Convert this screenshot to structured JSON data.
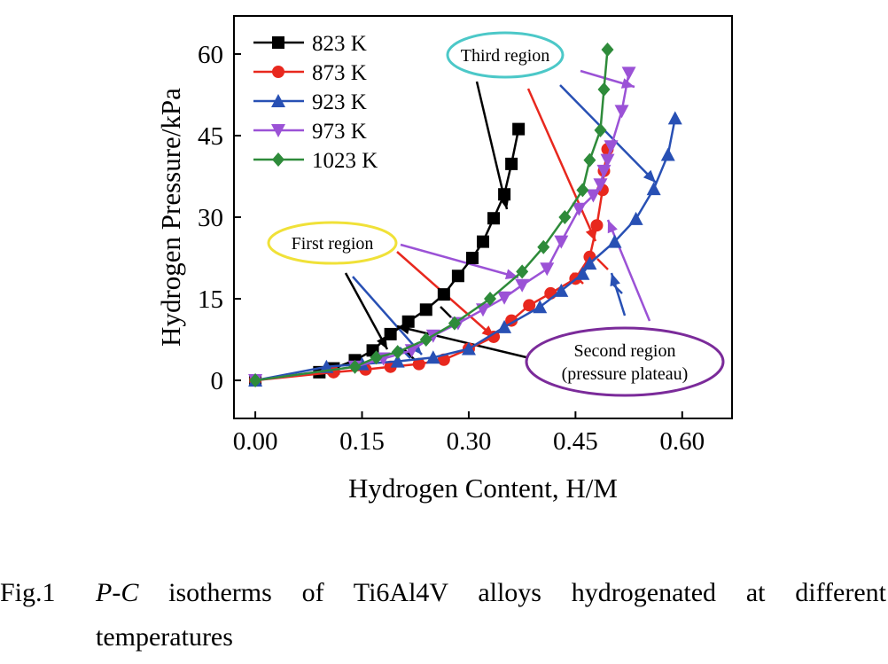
{
  "chart_data": {
    "type": "line",
    "xlabel": "Hydrogen Content, H/M",
    "ylabel": "Hydrogen Pressure/kPa",
    "xlim": [
      -0.03,
      0.67
    ],
    "ylim": [
      -7,
      67
    ],
    "xticks": [
      "0.00",
      "0.15",
      "0.30",
      "0.45",
      "0.60"
    ],
    "xtick_values": [
      0,
      0.15,
      0.3,
      0.45,
      0.6
    ],
    "yticks": [
      "0",
      "15",
      "30",
      "45",
      "60"
    ],
    "ytick_values": [
      0,
      15,
      30,
      45,
      60
    ],
    "legend_position": "top-left",
    "series": [
      {
        "name": "823 K",
        "color": "#000000",
        "marker": "square",
        "x": [
          0,
          0.09,
          0.11,
          0.14,
          0.165,
          0.19,
          0.215,
          0.24,
          0.265,
          0.285,
          0.305,
          0.32,
          0.335,
          0.35,
          0.36,
          0.37
        ],
        "y": [
          0,
          1.5,
          2.2,
          3.7,
          5.5,
          8.5,
          10.8,
          13,
          15.8,
          19.2,
          22.5,
          25.5,
          29.8,
          34.2,
          39.8,
          46.2
        ]
      },
      {
        "name": "873 K",
        "color": "#e8281e",
        "marker": "circle",
        "x": [
          0,
          0.11,
          0.155,
          0.19,
          0.23,
          0.265,
          0.3,
          0.335,
          0.36,
          0.385,
          0.415,
          0.45,
          0.47,
          0.48,
          0.488,
          0.49,
          0.495
        ],
        "y": [
          0,
          1.5,
          2.0,
          2.5,
          3.0,
          3.8,
          5.8,
          8.0,
          11.0,
          13.8,
          16.0,
          18.7,
          22.7,
          28.5,
          35.0,
          38.5,
          42.5
        ]
      },
      {
        "name": "923 K",
        "color": "#2850b4",
        "marker": "triangle-up",
        "x": [
          0,
          0.1,
          0.15,
          0.2,
          0.25,
          0.3,
          0.35,
          0.4,
          0.43,
          0.46,
          0.47,
          0.505,
          0.535,
          0.56,
          0.58,
          0.59
        ],
        "y": [
          0,
          2.5,
          3.0,
          3.5,
          4.2,
          5.8,
          9.8,
          13.5,
          16.5,
          19.6,
          21.5,
          25.5,
          29.7,
          35.2,
          41.5,
          48.2
        ]
      },
      {
        "name": "973 K",
        "color": "#9b52d6",
        "marker": "triangle-down",
        "x": [
          0,
          0.14,
          0.18,
          0.22,
          0.25,
          0.285,
          0.32,
          0.35,
          0.375,
          0.41,
          0.43,
          0.455,
          0.475,
          0.485,
          0.49,
          0.495,
          0.5,
          0.515,
          0.525
        ],
        "y": [
          0,
          2.5,
          4.0,
          5.5,
          8.2,
          10.5,
          13.0,
          15.2,
          17.5,
          20.5,
          25.5,
          31.5,
          34.0,
          36.0,
          38.5,
          40.5,
          43.0,
          49.5,
          56.5
        ]
      },
      {
        "name": "1023 K",
        "color": "#2e8b3a",
        "marker": "diamond",
        "x": [
          0,
          0.14,
          0.17,
          0.2,
          0.24,
          0.28,
          0.33,
          0.375,
          0.405,
          0.435,
          0.46,
          0.47,
          0.485,
          0.49,
          0.495
        ],
        "y": [
          0,
          2.5,
          4.2,
          5.2,
          7.5,
          10.5,
          15.0,
          20.0,
          24.5,
          30.0,
          35.0,
          40.5,
          46.0,
          53.5,
          60.8
        ]
      }
    ],
    "annotations": [
      {
        "label": "First region",
        "bubble_color": "#f0e138"
      },
      {
        "label": "Third region",
        "bubble_color": "#4cc8c8"
      },
      {
        "label_lines": [
          "Second region",
          "(pressure plateau)"
        ],
        "bubble_color": "#7b2b9a"
      }
    ]
  },
  "caption": {
    "number": "Fig.1",
    "italic": "P-C",
    "text_line1": " isotherms of Ti6Al4V alloys hydrogenated at different",
    "text_line2": "temperatures"
  }
}
